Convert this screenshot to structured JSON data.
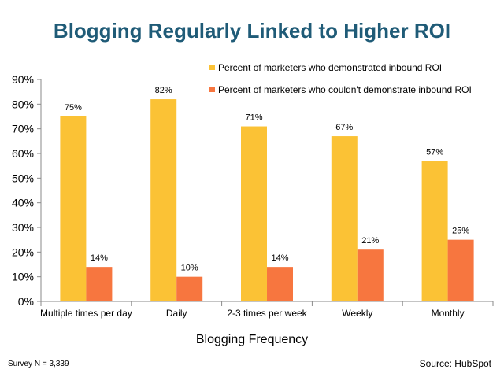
{
  "title": "Blogging Regularly Linked to Higher ROI",
  "footnote": "Survey  N = 3,339",
  "source": "Source: HubSpot",
  "chart_data": {
    "type": "bar",
    "title": "Blogging Regularly Linked to Higher ROI",
    "xlabel": "Blogging Frequency",
    "ylabel": "",
    "ylim": [
      0,
      90
    ],
    "yticks": [
      "0%",
      "10%",
      "20%",
      "30%",
      "40%",
      "50%",
      "60%",
      "70%",
      "80%",
      "90%"
    ],
    "categories": [
      "Multiple times per day",
      "Daily",
      "2-3 times per week",
      "Weekly",
      "Monthly"
    ],
    "series": [
      {
        "name": "Percent of marketers who demonstrated inbound ROI",
        "values": [
          75,
          82,
          71,
          67,
          57
        ],
        "labels": [
          "75%",
          "82%",
          "71%",
          "67%",
          "57%"
        ],
        "color": "#fbc235"
      },
      {
        "name": "Percent of marketers who couldn't demonstrate inbound ROI",
        "values": [
          14,
          10,
          14,
          21,
          25
        ],
        "labels": [
          "14%",
          "10%",
          "14%",
          "21%",
          "25%"
        ],
        "color": "#f7763f"
      }
    ],
    "grid": false,
    "legend_position": "top-right"
  }
}
